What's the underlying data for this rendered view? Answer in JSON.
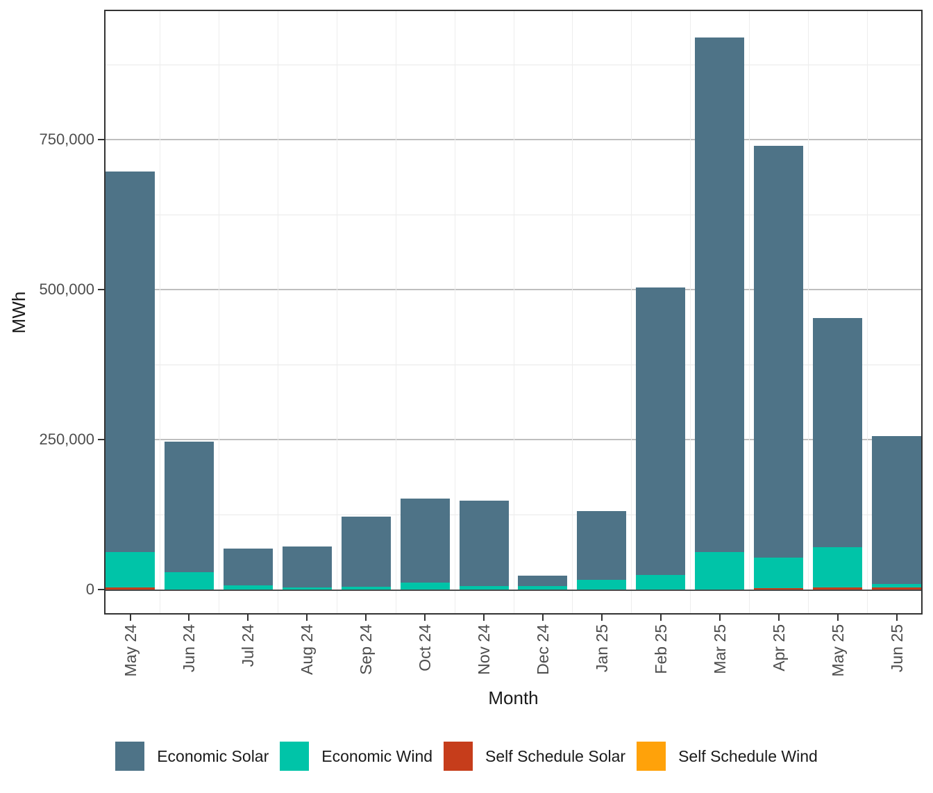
{
  "figure": {
    "background": "#ffffff",
    "panel_border_color": "#333333",
    "zero_line_color": "#4d4d4d",
    "grid_major_color": "#bfbfbf",
    "grid_minor_color": "#e9e9e9",
    "tick_label_color": "#4d4d4d",
    "axis_title_color": "#1a1a1a"
  },
  "chart_data": {
    "type": "bar",
    "stacked": true,
    "orientation": "vertical",
    "title": "",
    "xlabel": "Month",
    "ylabel": "MWh",
    "categories": [
      "May 24",
      "Jun 24",
      "Jul 24",
      "Aug 24",
      "Sep 24",
      "Oct 24",
      "Nov 24",
      "Dec 24",
      "Jan 25",
      "Feb 25",
      "Mar 25",
      "Apr 25",
      "May 25",
      "Jun 25"
    ],
    "series": [
      {
        "name": "Self Schedule Wind",
        "color": "#FFA20A",
        "values": [
          0,
          0,
          0,
          0,
          0,
          0,
          0,
          0,
          0,
          0,
          0,
          0,
          0,
          0
        ]
      },
      {
        "name": "Self Schedule Solar",
        "color": "#C63D1B",
        "values": [
          3000,
          0,
          0,
          0,
          0,
          0,
          0,
          0,
          0,
          0,
          0,
          2000,
          3000,
          3000
        ]
      },
      {
        "name": "Economic Wind",
        "color": "#00C4A8",
        "values": [
          59000,
          29000,
          7000,
          3000,
          5000,
          11000,
          6000,
          6000,
          16000,
          24000,
          63000,
          51000,
          68000,
          6000
        ]
      },
      {
        "name": "Economic Solar",
        "color": "#4E7387",
        "values": [
          635000,
          217000,
          61000,
          69000,
          116000,
          141000,
          142000,
          17000,
          115000,
          479000,
          857000,
          687000,
          382000,
          247000
        ]
      }
    ],
    "stack_order_note": "series listed bottom-to-top of the stack",
    "totals": [
      697000,
      246000,
      68000,
      72000,
      121000,
      152000,
      148000,
      23000,
      131000,
      503000,
      920000,
      740000,
      453000,
      256000
    ],
    "y_ticks": [
      {
        "value": 0,
        "label": "0"
      },
      {
        "value": 250000,
        "label": "250,000"
      },
      {
        "value": 500000,
        "label": "500,000"
      },
      {
        "value": 750000,
        "label": "750,000"
      }
    ],
    "y_minor_gridlines": [
      125000,
      375000,
      625000,
      875000
    ],
    "ylim": [
      0,
      968000
    ],
    "grid": "major+minor",
    "legend_position": "bottom"
  },
  "legend": {
    "items": [
      {
        "label": "Economic Solar",
        "color": "#4E7387"
      },
      {
        "label": "Economic Wind",
        "color": "#00C4A8"
      },
      {
        "label": "Self Schedule Solar",
        "color": "#C63D1B"
      },
      {
        "label": "Self Schedule Wind",
        "color": "#FFA20A"
      }
    ]
  }
}
